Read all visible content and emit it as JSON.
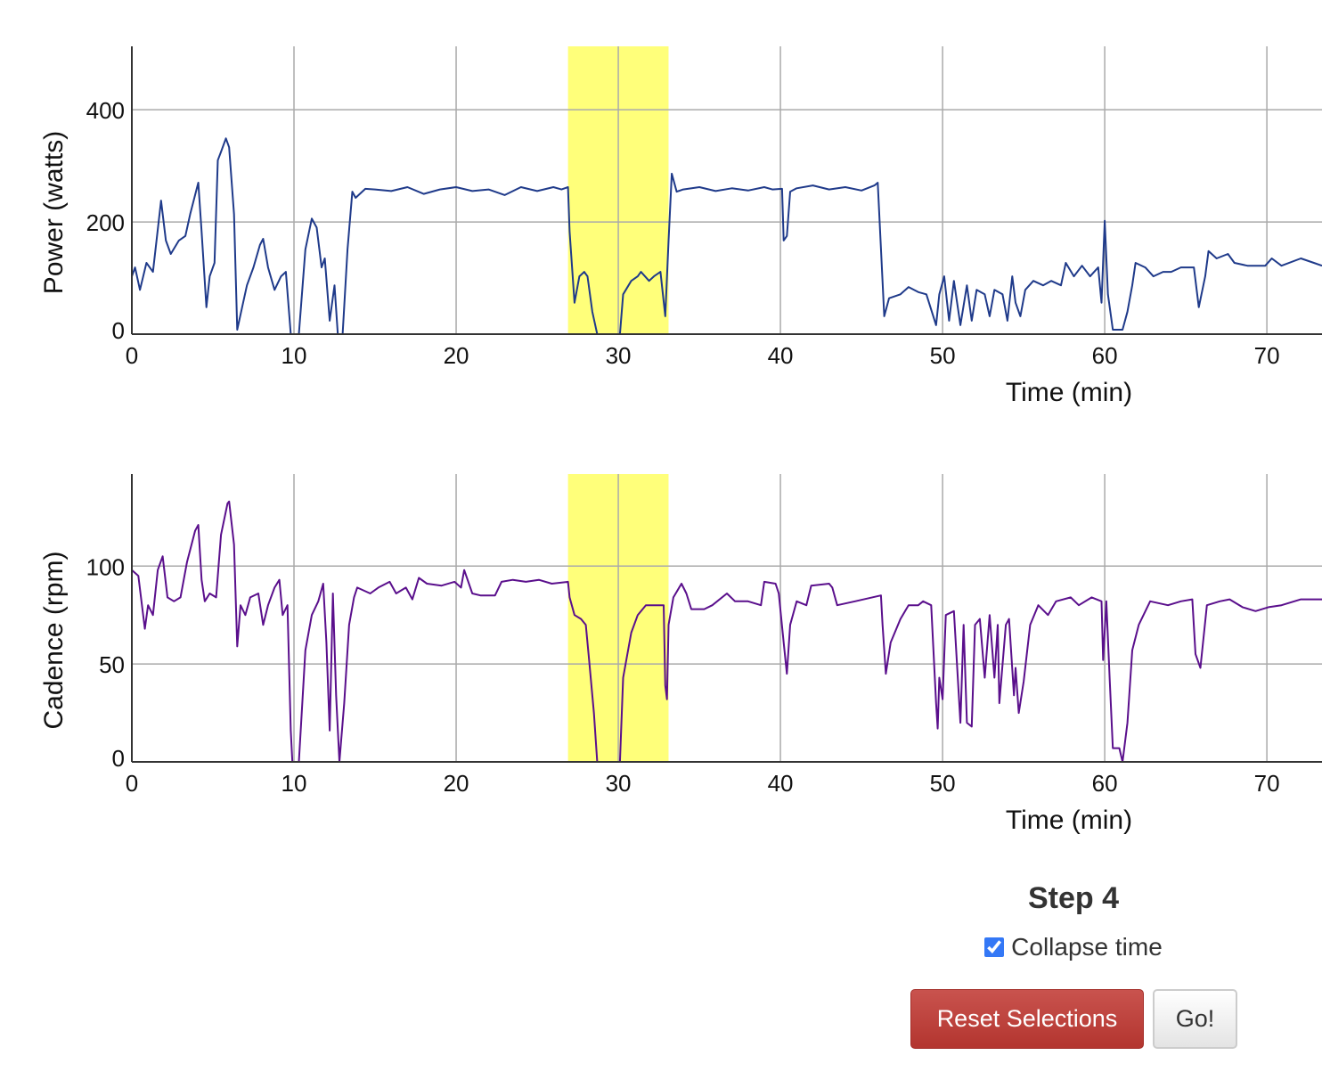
{
  "colors": {
    "power_line": "#1f3a8a",
    "cadence_line": "#5a0f8c",
    "highlight": "#ffff7a",
    "grid": "#aaaaaa"
  },
  "chart_data": [
    {
      "type": "line",
      "ylabel": "Power (watts)",
      "xlabel": "Time (min)",
      "xlim": [
        0,
        73.4
      ],
      "ylim": [
        0,
        513
      ],
      "xticks": [
        0,
        10,
        20,
        30,
        40,
        50,
        60,
        70
      ],
      "yticks": [
        0,
        200,
        400
      ],
      "grid": true,
      "highlight_range": [
        26.9,
        33.1
      ],
      "x": [
        0,
        0.2,
        0.5,
        0.9,
        1.3,
        1.8,
        2.1,
        2.4,
        2.9,
        3.3,
        3.6,
        4.0,
        4.1,
        4.3,
        4.6,
        4.8,
        5.1,
        5.3,
        5.5,
        5.8,
        6.0,
        6.3,
        6.5,
        6.8,
        7.1,
        7.5,
        7.9,
        8.1,
        8.4,
        8.8,
        9.2,
        9.5,
        9.8,
        10.3,
        10.7,
        11.1,
        11.4,
        11.7,
        11.9,
        12.2,
        12.5,
        12.7,
        13.0,
        13.3,
        13.6,
        13.8,
        14.4,
        15,
        16,
        17,
        18,
        19,
        20,
        21,
        22,
        23,
        24,
        25,
        26,
        26.5,
        26.9,
        27.0,
        27.3,
        27.6,
        27.9,
        28.1,
        28.4,
        28.7,
        30.1,
        30.3,
        30.8,
        31.2,
        31.4,
        31.9,
        32.2,
        32.6,
        32.9,
        33.1,
        33.3,
        33.6,
        34,
        35,
        36,
        37,
        38,
        39,
        39.5,
        40.1,
        40.2,
        40.4,
        40.6,
        41,
        42,
        43,
        44,
        45,
        45.8,
        46.0,
        46.4,
        46.7,
        47.4,
        47.9,
        48.5,
        49.0,
        49.6,
        49.8,
        50.1,
        50.4,
        50.7,
        51.1,
        51.5,
        51.8,
        52.1,
        52.6,
        52.9,
        53.2,
        53.7,
        54.0,
        54.3,
        54.5,
        54.8,
        55.1,
        55.6,
        56.2,
        56.7,
        57.3,
        57.6,
        58.1,
        58.6,
        59.1,
        59.6,
        59.8,
        60.0,
        60.2,
        60.5,
        61.1,
        61.4,
        61.7,
        61.9,
        62.5,
        63.0,
        63.6,
        64.1,
        64.7,
        65.5,
        65.8,
        66.2,
        66.4,
        66.9,
        67.6,
        68.0,
        68.8,
        69.9,
        70.3,
        70.9,
        72.1,
        72.9,
        73.4
      ],
      "values": [
        103,
        119,
        79,
        127,
        111,
        238,
        167,
        143,
        167,
        175,
        214,
        259,
        270,
        183,
        48,
        103,
        127,
        310,
        325,
        349,
        333,
        214,
        8,
        48,
        87,
        119,
        159,
        170,
        119,
        79,
        103,
        111,
        0,
        0,
        151,
        206,
        190,
        119,
        135,
        24,
        87,
        0,
        0,
        151,
        254,
        243,
        259,
        258,
        255,
        262,
        250,
        258,
        262,
        255,
        258,
        248,
        262,
        255,
        262,
        258,
        262,
        183,
        56,
        103,
        111,
        103,
        40,
        0,
        0,
        71,
        95,
        103,
        111,
        95,
        103,
        111,
        32,
        167,
        286,
        254,
        258,
        262,
        255,
        260,
        256,
        262,
        258,
        259,
        167,
        175,
        254,
        260,
        265,
        258,
        262,
        256,
        265,
        270,
        32,
        64,
        71,
        84,
        75,
        71,
        16,
        71,
        103,
        24,
        95,
        16,
        87,
        24,
        79,
        71,
        32,
        79,
        71,
        24,
        103,
        56,
        32,
        79,
        95,
        87,
        95,
        87,
        127,
        103,
        122,
        103,
        119,
        56,
        202,
        71,
        8,
        8,
        40,
        87,
        127,
        119,
        103,
        111,
        111,
        119,
        119,
        48,
        103,
        148,
        135,
        143,
        127,
        122,
        122,
        135,
        122,
        135,
        127,
        122
      ]
    },
    {
      "type": "line",
      "ylabel": "Cadence (rpm)",
      "xlabel": "Time (min)",
      "xlim": [
        0,
        73.4
      ],
      "ylim": [
        0,
        147
      ],
      "xticks": [
        0,
        10,
        20,
        30,
        40,
        50,
        60,
        70
      ],
      "yticks": [
        0,
        50,
        100
      ],
      "grid": true,
      "highlight_range": [
        26.9,
        33.1
      ],
      "x": [
        0,
        0.4,
        0.7,
        0.8,
        1.0,
        1.3,
        1.6,
        1.9,
        2.2,
        2.6,
        3.0,
        3.4,
        3.9,
        4.1,
        4.3,
        4.5,
        4.8,
        5.2,
        5.5,
        5.9,
        6.0,
        6.3,
        6.5,
        6.7,
        7.0,
        7.3,
        7.8,
        8.1,
        8.4,
        8.8,
        9.1,
        9.3,
        9.6,
        9.8,
        9.9,
        10.3,
        10.7,
        11.1,
        11.5,
        11.8,
        12.0,
        12.2,
        12.4,
        12.6,
        12.8,
        13.1,
        13.4,
        13.7,
        13.9,
        14.7,
        15.2,
        15.9,
        16.3,
        16.9,
        17.3,
        17.7,
        18.2,
        19.1,
        19.9,
        20.3,
        20.5,
        21.0,
        21.5,
        22.4,
        22.8,
        23.5,
        24.3,
        25.1,
        25.9,
        26.9,
        27.0,
        27.3,
        27.7,
        28.0,
        28.2,
        28.5,
        28.7,
        30.1,
        30.3,
        30.8,
        31.2,
        31.7,
        32.5,
        32.8,
        32.9,
        33.0,
        33.1,
        33.4,
        33.9,
        34.2,
        34.5,
        35.3,
        35.8,
        36.7,
        37.2,
        38.0,
        38.8,
        39.0,
        39.7,
        39.9,
        40.2,
        40.4,
        40.6,
        41.0,
        41.6,
        41.9,
        43.0,
        43.2,
        43.5,
        44.6,
        46.2,
        46.3,
        46.5,
        46.8,
        47.4,
        47.9,
        48.5,
        48.8,
        49.3,
        49.6,
        49.7,
        49.8,
        50.0,
        50.2,
        50.7,
        51.1,
        51.3,
        51.5,
        51.8,
        52.0,
        52.3,
        52.6,
        52.9,
        53.2,
        53.4,
        53.5,
        53.9,
        54.1,
        54.4,
        54.5,
        54.7,
        55.0,
        55.4,
        55.9,
        56.5,
        57.0,
        57.9,
        58.4,
        59.2,
        59.8,
        59.9,
        60.1,
        60.3,
        60.5,
        60.9,
        61.1,
        61.4,
        61.7,
        62.1,
        62.8,
        63.9,
        64.7,
        65.4,
        65.6,
        65.9,
        66.3,
        67.1,
        67.7,
        68.5,
        69.3,
        70.1,
        70.9,
        72.1,
        73.4
      ],
      "values": [
        98,
        95,
        75,
        68,
        80,
        75,
        98,
        105,
        84,
        82,
        84,
        102,
        118,
        121,
        93,
        82,
        86,
        84,
        116,
        132,
        133,
        111,
        59,
        80,
        75,
        84,
        86,
        70,
        80,
        89,
        93,
        75,
        80,
        16,
        0,
        0,
        57,
        75,
        82,
        91,
        61,
        16,
        86,
        34,
        0,
        30,
        70,
        84,
        89,
        86,
        89,
        92,
        86,
        89,
        83,
        94,
        91,
        90,
        92,
        89,
        98,
        86,
        85,
        85,
        92,
        93,
        92,
        93,
        91,
        92,
        84,
        75,
        73,
        70,
        52,
        25,
        0,
        0,
        43,
        66,
        75,
        80,
        80,
        80,
        39,
        32,
        70,
        84,
        91,
        86,
        78,
        78,
        80,
        86,
        82,
        82,
        80,
        92,
        91,
        86,
        61,
        45,
        70,
        82,
        80,
        90,
        91,
        89,
        80,
        82,
        85,
        70,
        45,
        61,
        73,
        80,
        80,
        82,
        80,
        30,
        17,
        43,
        32,
        75,
        77,
        20,
        70,
        20,
        18,
        70,
        73,
        43,
        75,
        43,
        70,
        30,
        70,
        73,
        34,
        48,
        25,
        41,
        70,
        80,
        75,
        82,
        84,
        80,
        84,
        82,
        52,
        82,
        43,
        7,
        7,
        0,
        20,
        57,
        70,
        82,
        80,
        82,
        83,
        55,
        48,
        80,
        82,
        83,
        79,
        77,
        79,
        80,
        83,
        83
      ]
    }
  ],
  "controls": {
    "step_title": "Step 4",
    "collapse_label": "Collapse time",
    "collapse_checked": true,
    "reset_label": "Reset Selections",
    "go_label": "Go!"
  }
}
